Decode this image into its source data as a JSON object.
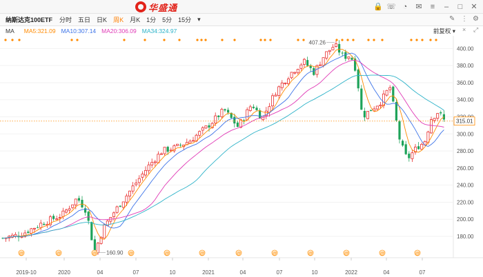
{
  "app": {
    "brand": "华盛通"
  },
  "toolbar": {
    "symbol": "纳斯达克100ETF",
    "periods": [
      "分时",
      "五日",
      "日K",
      "周K",
      "月K",
      "1分",
      "5分",
      "15分"
    ],
    "active_period": "周K",
    "dropdown_arrow": "▾"
  },
  "ma_bar": {
    "label": "MA",
    "items": [
      {
        "text": "MA5:321.09",
        "color": "#ff8a00"
      },
      {
        "text": "MA10:307.14",
        "color": "#3c73e8"
      },
      {
        "text": "MA20:306.09",
        "color": "#e03ab6"
      },
      {
        "text": "MA34:324.97",
        "color": "#2bb2c8"
      }
    ],
    "adjust_label": "前复权"
  },
  "chart_data": {
    "type": "candlestick",
    "y_ticks": [
      "400.00",
      "380.00",
      "360.00",
      "340.00",
      "320.00",
      "300.00",
      "280.00",
      "260.00",
      "240.00",
      "220.00",
      "200.00",
      "180.00"
    ],
    "x_ticks": [
      "2019-10",
      "2020",
      "04",
      "07",
      "10",
      "2021",
      "04",
      "07",
      "10",
      "2022",
      "04",
      "07"
    ],
    "current_price": "315.01",
    "high_label": "407.26",
    "low_label": "160.90",
    "up_color": "#e82d2d",
    "down_color": "#1fa35a",
    "event_marker": "@"
  }
}
